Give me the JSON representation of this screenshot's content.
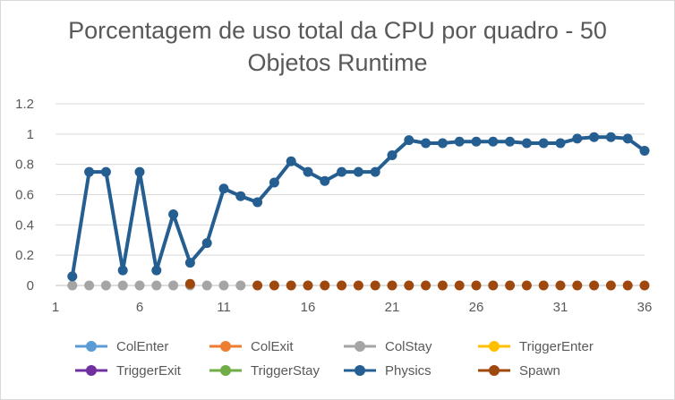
{
  "chart_data": {
    "type": "line",
    "title": "Porcentagem de uso total da CPU por quadro - 50 Objetos Runtime",
    "title_lines": [
      "Porcentagem de uso total da CPU por quadro - 50",
      "Objetos Runtime"
    ],
    "xlabel": "",
    "ylabel": "",
    "x": [
      2,
      3,
      4,
      5,
      6,
      7,
      8,
      9,
      10,
      11,
      12,
      13,
      14,
      15,
      16,
      17,
      18,
      19,
      20,
      21,
      22,
      23,
      24,
      25,
      26,
      27,
      28,
      29,
      30,
      31,
      32,
      33,
      34,
      35,
      36
    ],
    "xlim": [
      1,
      36
    ],
    "xticks": [
      1,
      6,
      11,
      16,
      21,
      26,
      31,
      36
    ],
    "ylim": [
      0,
      1.2
    ],
    "yticks": [
      "0",
      "0.2",
      "0.4",
      "0.6",
      "0.8",
      "1",
      "1.2"
    ],
    "grid": "horizontal",
    "legend_position": "bottom",
    "series": [
      {
        "name": "ColEnter",
        "color": "#5B9BD5",
        "x": [],
        "values": []
      },
      {
        "name": "ColExit",
        "color": "#ED7D31",
        "x": [],
        "values": []
      },
      {
        "name": "ColStay",
        "color": "#A5A5A5",
        "x": [
          2,
          3,
          4,
          5,
          6,
          7,
          8,
          9,
          10,
          11,
          12
        ],
        "values": [
          0,
          0,
          0,
          0,
          0,
          0,
          0,
          0,
          0,
          0,
          0
        ]
      },
      {
        "name": "TriggerEnter",
        "color": "#FFC000",
        "x": [],
        "values": []
      },
      {
        "name": "TriggerExit",
        "color": "#7030A0",
        "x": [],
        "values": []
      },
      {
        "name": "TriggerStay",
        "color": "#70AD47",
        "x": [],
        "values": []
      },
      {
        "name": "Physics",
        "color": "#255E91",
        "x": [
          2,
          3,
          4,
          5,
          6,
          7,
          8,
          9,
          10,
          11,
          12,
          13,
          14,
          15,
          16,
          17,
          18,
          19,
          20,
          21,
          22,
          23,
          24,
          25,
          26,
          27,
          28,
          29,
          30,
          31,
          32,
          33,
          34,
          35,
          36
        ],
        "values": [
          0.06,
          0.75,
          0.75,
          0.1,
          0.75,
          0.1,
          0.47,
          0.15,
          0.28,
          0.64,
          0.59,
          0.55,
          0.68,
          0.82,
          0.75,
          0.69,
          0.75,
          0.75,
          0.75,
          0.86,
          0.96,
          0.94,
          0.94,
          0.95,
          0.95,
          0.95,
          0.95,
          0.94,
          0.94,
          0.94,
          0.97,
          0.98,
          0.98,
          0.97,
          0.89
        ]
      },
      {
        "name": "Spawn",
        "color": "#9E480E",
        "x": [
          9,
          13,
          14,
          15,
          16,
          17,
          18,
          19,
          20,
          21,
          22,
          23,
          24,
          25,
          26,
          27,
          28,
          29,
          30,
          31,
          32,
          33,
          34,
          35,
          36
        ],
        "values": [
          0.01,
          0,
          0,
          0,
          0,
          0,
          0,
          0,
          0,
          0,
          0,
          0,
          0,
          0,
          0,
          0,
          0,
          0,
          0,
          0,
          0,
          0,
          0,
          0,
          0
        ]
      }
    ]
  }
}
